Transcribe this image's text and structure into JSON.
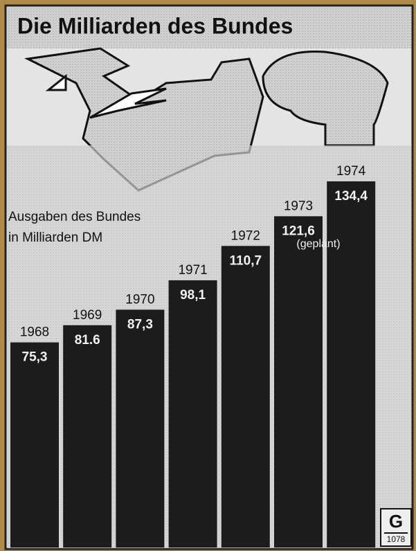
{
  "chart_data": {
    "type": "bar",
    "title": "Die Milliarden des Bundes",
    "subtitle": [
      "Ausgaben des Bundes",
      "in Milliarden DM"
    ],
    "categories": [
      "1968",
      "1969",
      "1970",
      "1971",
      "1972",
      "1973",
      "1974"
    ],
    "values": [
      75.3,
      81.6,
      87.3,
      98.1,
      110.7,
      121.6,
      134.4
    ],
    "value_labels": [
      "75,3",
      "81.6",
      "87,3",
      "98,1",
      "110,7",
      "121,6",
      "134,4"
    ],
    "annotation": "(geplant)",
    "color": "#1c1c1c",
    "logo": {
      "symbol": "G",
      "code": "1078"
    }
  }
}
